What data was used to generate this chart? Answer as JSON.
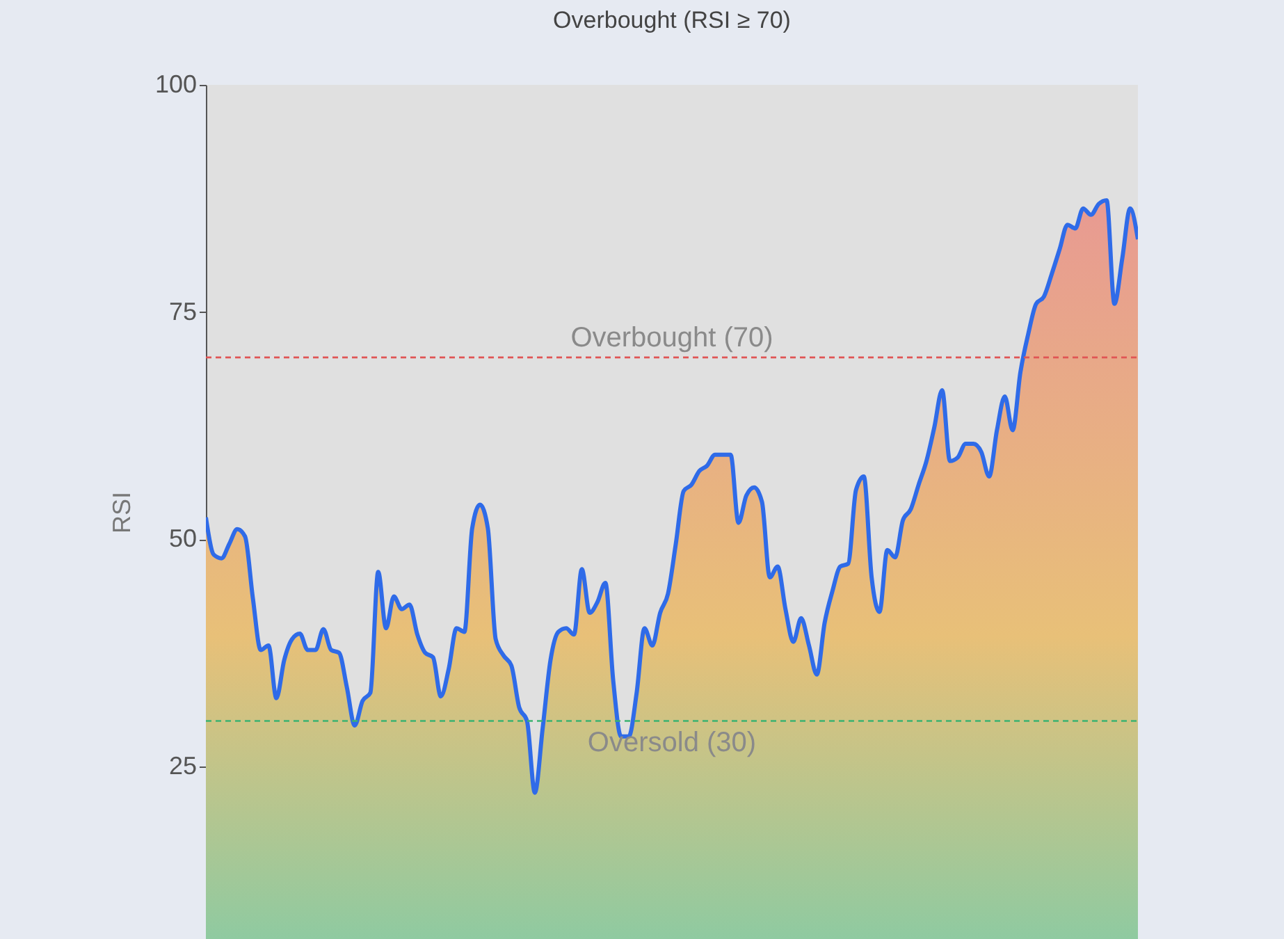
{
  "chart_data": {
    "type": "area",
    "title": "Overbought (RSI ≥ 70)",
    "ylabel": "RSI",
    "categories": [
      null,
      null,
      null,
      null,
      null,
      null,
      null,
      null,
      null,
      null,
      null,
      null,
      null,
      null,
      null,
      null,
      null,
      null,
      null,
      null,
      null,
      null,
      null,
      null,
      null,
      null,
      null,
      null,
      null,
      null,
      null,
      null,
      null,
      null,
      null,
      null,
      null,
      null,
      null,
      null,
      null,
      null,
      null,
      null,
      null,
      null,
      null,
      null,
      null,
      null,
      null,
      null,
      null,
      null,
      null,
      null,
      null,
      null,
      null,
      null,
      null,
      null,
      null,
      null,
      null,
      null,
      null,
      null,
      null,
      null,
      null,
      null,
      null,
      null,
      null,
      null,
      null,
      null,
      null,
      null,
      null,
      null,
      null,
      null,
      null,
      null,
      null,
      null,
      null,
      null,
      null,
      null,
      null,
      null,
      null,
      null,
      null,
      null,
      null,
      null,
      null,
      null,
      null,
      null,
      null,
      null,
      null,
      null,
      null,
      null,
      null,
      null,
      null,
      null,
      null,
      null,
      null,
      null,
      null,
      null
    ],
    "series": [
      {
        "color": "#2f6be8",
        "values": [
          52.4,
          48.3,
          47.9,
          49.5,
          51.1,
          50.3,
          43.5,
          37.8,
          38.3,
          32.5,
          36.7,
          39.0,
          39.6,
          37.8,
          37.8,
          40.1,
          37.8,
          37.5,
          33.7,
          29.5,
          32.2,
          33.1,
          46.4,
          40.2,
          43.7,
          42.3,
          42.8,
          39.5,
          37.5,
          37.0,
          32.7,
          35.7,
          40.2,
          39.8,
          51.2,
          53.8,
          51.2,
          39.0,
          37.2,
          36.1,
          31.5,
          30.0,
          22.1,
          29.2,
          36.7,
          39.8,
          40.2,
          39.5,
          46.7,
          41.9,
          43.1,
          45.2,
          34.5,
          28.3,
          28.3,
          33.1,
          40.2,
          38.3,
          41.9,
          44.0,
          49.5,
          55.3,
          56.0,
          57.5,
          58.1,
          59.3,
          59.3,
          59.3,
          51.8,
          54.8,
          55.7,
          54.1,
          45.8,
          47.0,
          42.3,
          38.7,
          41.3,
          38.3,
          35.1,
          40.8,
          44.3,
          47.0,
          47.3,
          55.4,
          56.9,
          45.8,
          42.0,
          48.8,
          48.0,
          52.1,
          53.3,
          56.0,
          58.6,
          62.3,
          66.4,
          58.6,
          59.0,
          60.5,
          60.5,
          59.6,
          56.9,
          62.0,
          65.7,
          62.0,
          68.4,
          72.6,
          75.9,
          76.7,
          79.2,
          81.9,
          84.6,
          84.2,
          86.4,
          85.7,
          86.9,
          87.3,
          75.9,
          80.9,
          86.4,
          83.0
        ]
      }
    ],
    "ylim": [
      6,
      100
    ],
    "yticks": [
      25,
      50,
      75,
      100
    ],
    "grid": false,
    "line_style": "solid",
    "marker": "none",
    "tick_labels": "y",
    "ref_lines": [
      {
        "axis": "y",
        "value": 70,
        "label": "Overbought (70)",
        "color": "#e05555",
        "line_style": "dashed"
      },
      {
        "axis": "y",
        "value": 30,
        "label": "Oversold (30)",
        "color": "#3cb371",
        "line_style": "dashed"
      }
    ]
  }
}
